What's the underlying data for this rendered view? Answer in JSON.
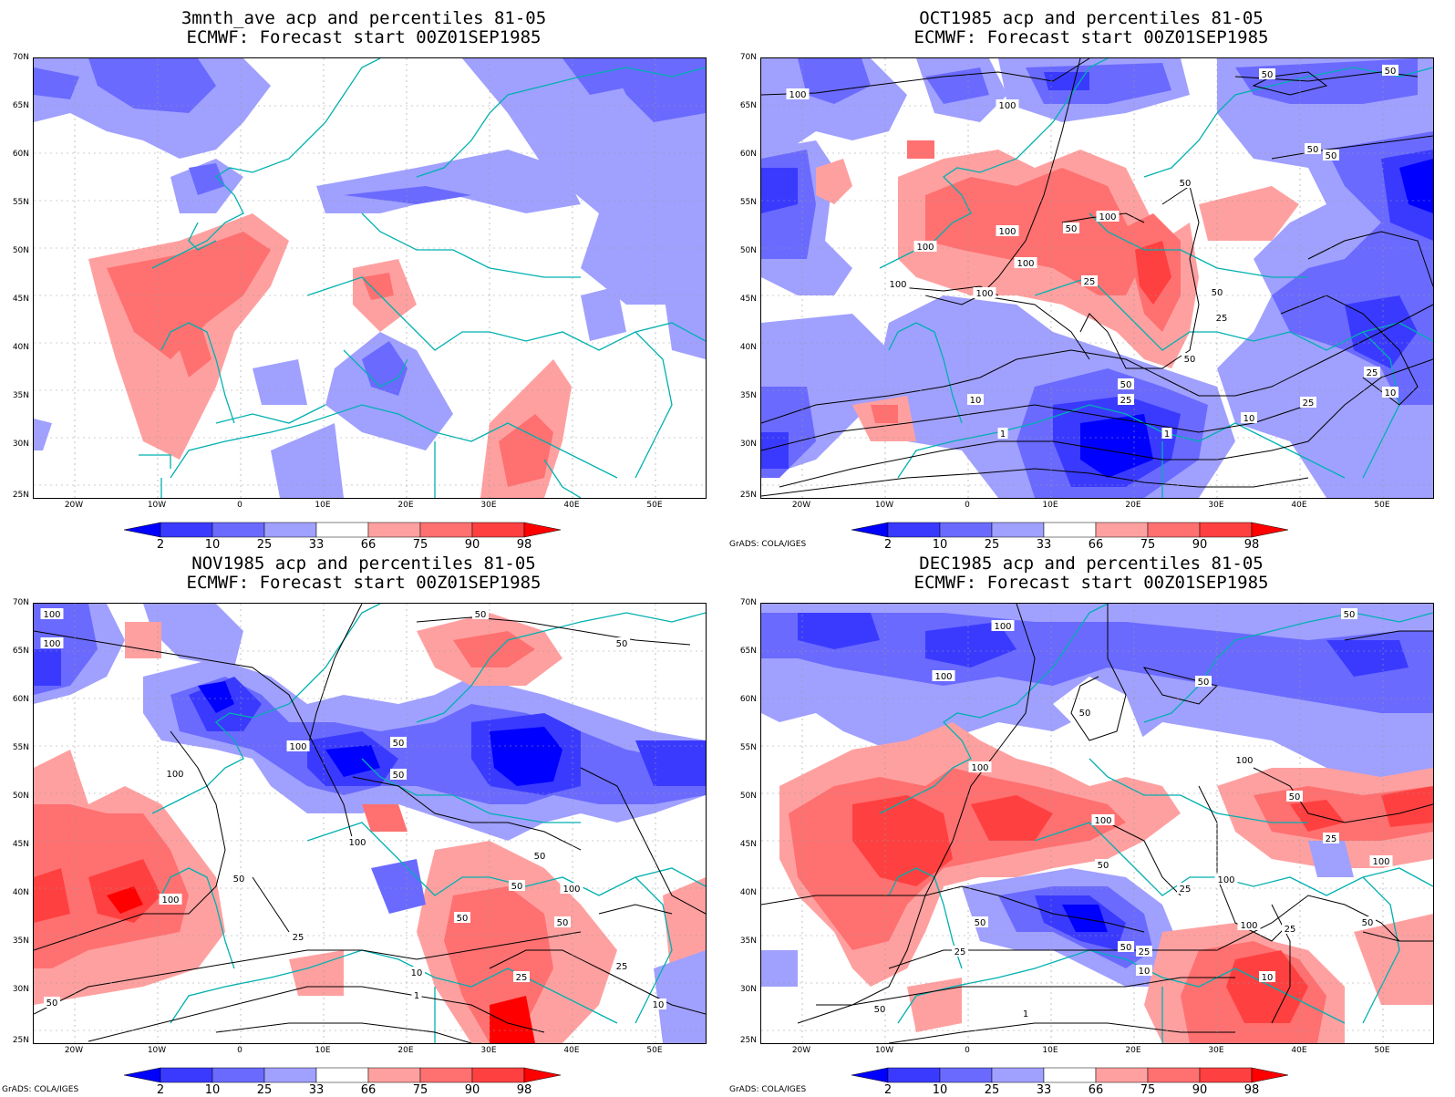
{
  "credit": "GrADS: COLA/IGES",
  "y_ticks": [
    "70N",
    "65N",
    "60N",
    "55N",
    "50N",
    "45N",
    "40N",
    "35N",
    "30N",
    "25N"
  ],
  "x_ticks": [
    "20W",
    "10W",
    "0",
    "10E",
    "20E",
    "30E",
    "40E",
    "50E"
  ],
  "colorbar": {
    "labels": [
      "2",
      "10",
      "25",
      "33",
      "66",
      "75",
      "90",
      "98"
    ],
    "colors": [
      "#0000ff",
      "#3a3aff",
      "#6a6aff",
      "#a0a0ff",
      "#ffffff",
      "#ffa0a0",
      "#ff7070",
      "#ff4040",
      "#ff0000"
    ]
  },
  "panels": [
    {
      "title1": "3mnth_ave acp and percentiles 81-05",
      "title2": "ECMWF: Forecast start 00Z01SEP1985",
      "contour_labels": [],
      "show_credit": false
    },
    {
      "title1": "OCT1985 acp and percentiles 81-05",
      "title2": "ECMWF: Forecast start 00Z01SEP1985",
      "contour_labels": [
        "50",
        "50",
        "100",
        "100",
        "50",
        "50",
        "50",
        "50",
        "100",
        "100",
        "100",
        "100",
        "100",
        "100",
        "25",
        "50",
        "25",
        "50",
        "50",
        "25",
        "25",
        "10",
        "1",
        "10",
        "1",
        "25",
        "10"
      ],
      "show_credit": true
    },
    {
      "title1": "NOV1985 acp and percentiles 81-05",
      "title2": "ECMWF: Forecast start 00Z01SEP1985",
      "contour_labels": [
        "100",
        "100",
        "50",
        "50",
        "100",
        "100",
        "50",
        "50",
        "100",
        "50",
        "50",
        "100",
        "100",
        "50",
        "50",
        "50",
        "25",
        "25",
        "10",
        "1",
        "25",
        "10",
        "50"
      ],
      "show_credit": true
    },
    {
      "title1": "DEC1985 acp and percentiles 81-05",
      "title2": "ECMWF: Forecast start 00Z01SEP1985",
      "contour_labels": [
        "50",
        "100",
        "100",
        "50",
        "50",
        "100",
        "100",
        "50",
        "100",
        "50",
        "25",
        "100",
        "100",
        "25",
        "50",
        "50",
        "25",
        "100",
        "50",
        "25",
        "10",
        "10",
        "1",
        "50",
        "25"
      ],
      "show_credit": true
    }
  ]
}
